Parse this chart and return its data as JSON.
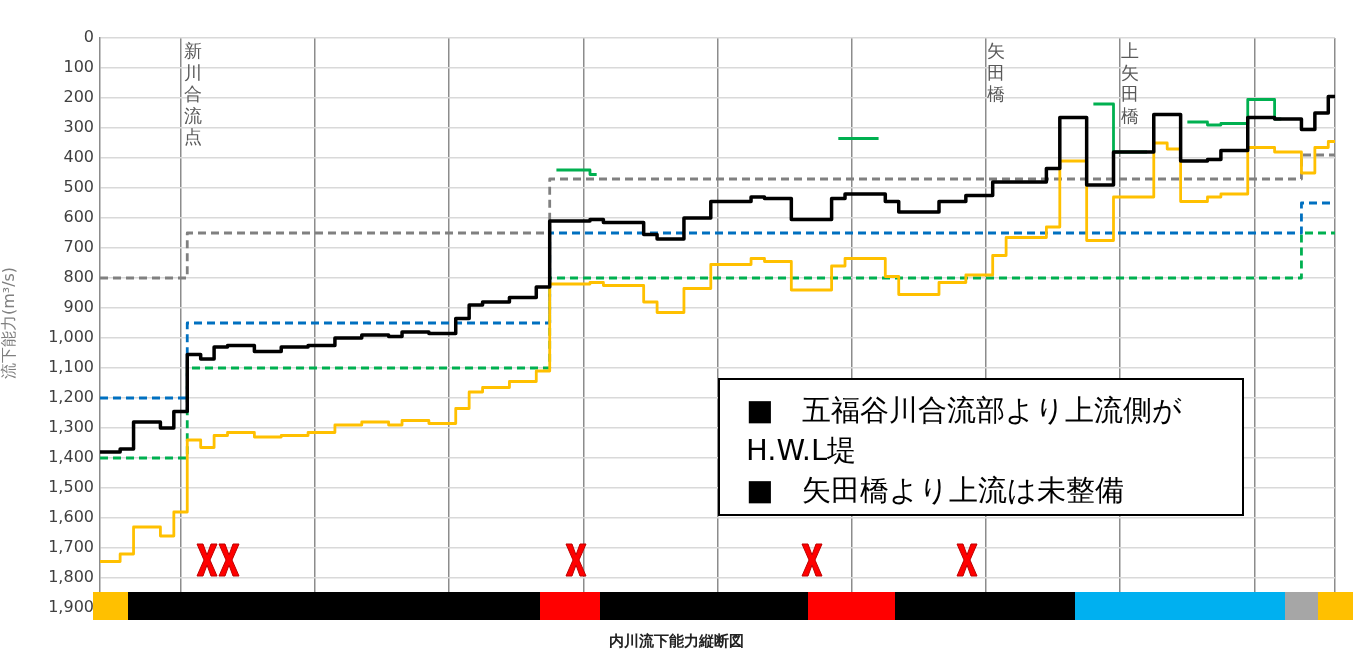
{
  "chart_data": {
    "type": "step",
    "xlabel": "内川流下能力縦断図",
    "ylabel": "流下能力(m³/s)",
    "categories": [
      null,
      null,
      null,
      null,
      null,
      null,
      null,
      null,
      null,
      null,
      null,
      null,
      null,
      null,
      null,
      null,
      null,
      null,
      null,
      null,
      null,
      null,
      null,
      null,
      null,
      null,
      null,
      null,
      null,
      null,
      null,
      null,
      null,
      null,
      null,
      null,
      null,
      null,
      null,
      null,
      null,
      null,
      null,
      null,
      null,
      null,
      null,
      null,
      null,
      null,
      null,
      null,
      null,
      null,
      null,
      null,
      null,
      null,
      null,
      null,
      null,
      null,
      null,
      null,
      null,
      null,
      null,
      null,
      null,
      null,
      null,
      null,
      null,
      null,
      null,
      null,
      null,
      null,
      null,
      null,
      null,
      null,
      null,
      null,
      null,
      null,
      null,
      null,
      null,
      null,
      null,
      null,
      null
    ],
    "ylim": [
      1900,
      0
    ],
    "yticks": [
      0,
      100,
      200,
      300,
      400,
      500,
      600,
      700,
      800,
      900,
      {
        "value": 1000,
        "label": "1,000"
      },
      {
        "value": 1100,
        "label": "1,100"
      },
      {
        "value": 1200,
        "label": "1,200"
      },
      {
        "value": 1300,
        "label": "1,300"
      },
      {
        "value": 1400,
        "label": "1,400"
      },
      {
        "value": 1500,
        "label": "1,500"
      },
      {
        "value": 1600,
        "label": "1,600"
      },
      {
        "value": 1700,
        "label": "1,700"
      },
      {
        "value": 1800,
        "label": "1,800"
      },
      {
        "value": 1900,
        "label": "1,900"
      }
    ],
    "tick_labels": "y",
    "grid": true,
    "legend": false,
    "series": [
      {
        "color": "#000000",
        "line_style": "solid",
        "values": [
          1380,
          1380,
          1370,
          1280,
          1280,
          1300,
          1245,
          1055,
          1070,
          1030,
          1025,
          1025,
          1045,
          1045,
          1030,
          1030,
          1025,
          1025,
          1000,
          1000,
          990,
          990,
          995,
          980,
          980,
          985,
          985,
          935,
          890,
          880,
          880,
          865,
          865,
          830,
          610,
          610,
          610,
          605,
          615,
          615,
          615,
          655,
          670,
          670,
          600,
          600,
          545,
          545,
          545,
          530,
          535,
          535,
          605,
          605,
          605,
          535,
          520,
          520,
          520,
          545,
          580,
          580,
          580,
          545,
          545,
          525,
          525,
          480,
          480,
          480,
          480,
          435,
          265,
          265,
          490,
          490,
          380,
          380,
          380,
          255,
          255,
          410,
          410,
          405,
          375,
          375,
          265,
          265,
          270,
          270,
          305,
          250,
          195
        ]
      },
      {
        "color": "#00b050",
        "line_style": "solid",
        "values": [
          null,
          null,
          null,
          null,
          null,
          null,
          null,
          null,
          null,
          null,
          null,
          null,
          null,
          null,
          null,
          null,
          null,
          null,
          null,
          null,
          null,
          null,
          null,
          null,
          null,
          null,
          null,
          null,
          null,
          null,
          null,
          null,
          null,
          null,
          440,
          440,
          440,
          455,
          null,
          null,
          null,
          null,
          null,
          null,
          null,
          null,
          null,
          null,
          null,
          null,
          null,
          null,
          null,
          null,
          null,
          335,
          335,
          335,
          335,
          null,
          null,
          null,
          null,
          null,
          null,
          null,
          null,
          null,
          null,
          null,
          null,
          null,
          null,
          null,
          220,
          220,
          380,
          380,
          380,
          null,
          null,
          280,
          280,
          290,
          285,
          285,
          205,
          205,
          270,
          null,
          null,
          null,
          null
        ]
      },
      {
        "color": "#ffc000",
        "line_style": "solid",
        "values": [
          1745,
          1745,
          1720,
          1630,
          1630,
          1660,
          1580,
          1340,
          1365,
          1325,
          1315,
          1315,
          1330,
          1330,
          1325,
          1325,
          1315,
          1315,
          1290,
          1290,
          1280,
          1280,
          1290,
          1275,
          1275,
          1285,
          1285,
          1235,
          1180,
          1165,
          1165,
          1145,
          1145,
          1110,
          820,
          820,
          820,
          815,
          825,
          825,
          825,
          880,
          915,
          915,
          835,
          835,
          755,
          755,
          755,
          735,
          745,
          745,
          840,
          840,
          840,
          760,
          735,
          735,
          735,
          795,
          855,
          855,
          855,
          815,
          815,
          790,
          790,
          725,
          665,
          665,
          665,
          630,
          410,
          410,
          675,
          675,
          530,
          530,
          530,
          350,
          370,
          545,
          545,
          530,
          520,
          520,
          365,
          365,
          380,
          380,
          450,
          365,
          345
        ]
      },
      {
        "color": "#808080",
        "line_style": "dashed",
        "values": [
          800,
          800,
          800,
          800,
          800,
          800,
          800,
          650,
          650,
          650,
          650,
          650,
          650,
          650,
          650,
          650,
          650,
          650,
          650,
          650,
          650,
          650,
          650,
          650,
          650,
          650,
          650,
          650,
          650,
          650,
          650,
          650,
          650,
          650,
          470,
          470,
          470,
          470,
          470,
          470,
          470,
          470,
          470,
          470,
          470,
          470,
          470,
          470,
          470,
          470,
          470,
          470,
          470,
          470,
          470,
          470,
          470,
          470,
          470,
          470,
          470,
          470,
          470,
          470,
          470,
          470,
          470,
          470,
          470,
          470,
          470,
          470,
          470,
          470,
          470,
          470,
          470,
          470,
          470,
          470,
          470,
          470,
          470,
          470,
          470,
          470,
          470,
          470,
          470,
          470,
          390,
          390,
          390
        ]
      },
      {
        "color": "#0070c0",
        "line_style": "dashed",
        "values": [
          1200,
          1200,
          1200,
          1200,
          1200,
          1200,
          1200,
          950,
          950,
          950,
          950,
          950,
          950,
          950,
          950,
          950,
          950,
          950,
          950,
          950,
          950,
          950,
          950,
          950,
          950,
          950,
          950,
          950,
          950,
          950,
          950,
          950,
          950,
          950,
          650,
          650,
          650,
          650,
          650,
          650,
          650,
          650,
          650,
          650,
          650,
          650,
          650,
          650,
          650,
          650,
          650,
          650,
          650,
          650,
          650,
          650,
          650,
          650,
          650,
          650,
          650,
          650,
          650,
          650,
          650,
          650,
          650,
          650,
          650,
          650,
          650,
          650,
          650,
          650,
          650,
          650,
          650,
          650,
          650,
          650,
          650,
          650,
          650,
          650,
          650,
          650,
          650,
          650,
          650,
          650,
          550,
          550,
          550
        ]
      },
      {
        "color": "#00b050",
        "line_style": "dashed",
        "values": [
          1400,
          1400,
          1400,
          1400,
          1400,
          1400,
          1400,
          1100,
          1100,
          1100,
          1100,
          1100,
          1100,
          1100,
          1100,
          1100,
          1100,
          1100,
          1100,
          1100,
          1100,
          1100,
          1100,
          1100,
          1100,
          1100,
          1100,
          1100,
          1100,
          1100,
          1100,
          1100,
          1100,
          1100,
          800,
          800,
          800,
          800,
          800,
          800,
          800,
          800,
          800,
          800,
          800,
          800,
          800,
          800,
          800,
          800,
          800,
          800,
          800,
          800,
          800,
          800,
          800,
          800,
          800,
          800,
          800,
          800,
          800,
          800,
          800,
          800,
          800,
          800,
          800,
          800,
          800,
          800,
          800,
          800,
          800,
          800,
          800,
          800,
          800,
          800,
          800,
          800,
          800,
          800,
          800,
          800,
          800,
          800,
          800,
          800,
          650,
          650,
          650
        ]
      }
    ],
    "annotations": [
      "新川合流点",
      "矢田橋",
      "上矢田橋",
      "■　五福谷川合流部より上流側が\nH.W.L堤",
      "■　矢田橋より上流は未整備"
    ]
  }
}
